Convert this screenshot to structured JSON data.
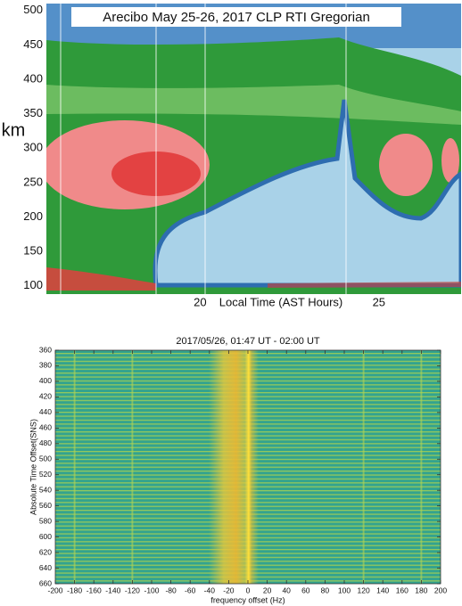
{
  "chart_data": [
    {
      "type": "heatmap",
      "title": "Arecibo May 25-26, 2017 CLP RTI Gregorian",
      "y_label": "km",
      "x_label": "Local Time (AST Hours)",
      "xlim": [
        15.7,
        27.3
      ],
      "xticks": [
        20,
        25
      ],
      "ylim": [
        88,
        510
      ],
      "yticks": [
        100,
        150,
        200,
        250,
        300,
        350,
        400,
        450,
        500
      ]
    },
    {
      "type": "heatmap",
      "title": "2017/05/26, 01:47 UT - 02:00 UT",
      "x_label": "frequency offset (Hz)",
      "y_label": "Absolute Time Offset(SNS)",
      "xlim": [
        -200,
        200
      ],
      "xticks": [
        -200,
        -180,
        -160,
        -140,
        -120,
        -100,
        -80,
        -60,
        -40,
        -20,
        0,
        20,
        40,
        60,
        80,
        100,
        120,
        140,
        160,
        180,
        200
      ],
      "ylim": [
        660,
        360
      ],
      "yticks": [
        360,
        380,
        400,
        420,
        440,
        460,
        480,
        500,
        520,
        540,
        560,
        580,
        600,
        620,
        640,
        660
      ]
    }
  ]
}
